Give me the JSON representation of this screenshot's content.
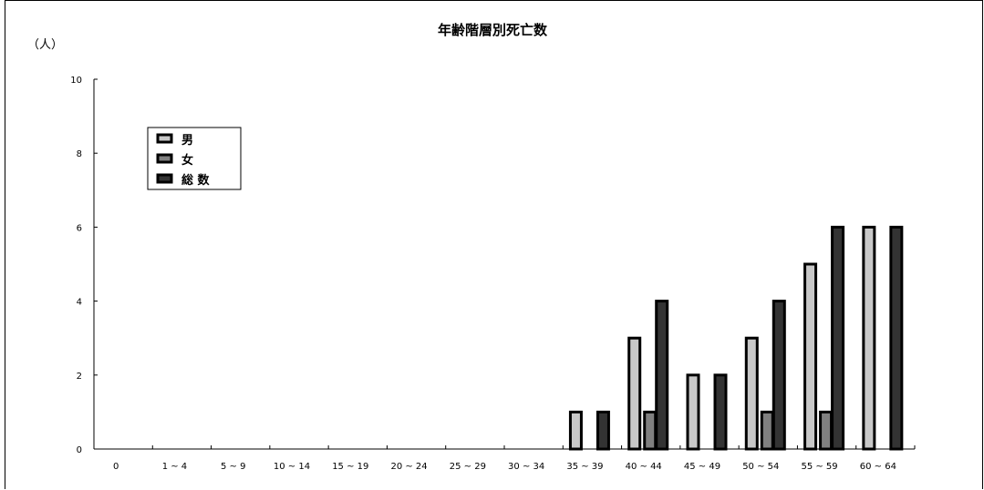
{
  "chart_data": {
    "type": "bar",
    "title": "年齢階層別死亡数",
    "ylabel": "（人）",
    "xlabel": "",
    "ylim": [
      0,
      10
    ],
    "yticks": [
      0,
      2,
      4,
      6,
      8,
      10
    ],
    "categories": [
      "0",
      "1 ~ 4",
      "5 ~ 9",
      "10 ~ 14",
      "15 ~ 19",
      "20 ~ 24",
      "25 ~ 29",
      "30 ~ 34",
      "35 ~ 39",
      "40 ~ 44",
      "45 ~ 49",
      "50 ~ 54",
      "55 ~ 59",
      "60 ~ 64"
    ],
    "series": [
      {
        "name": "男",
        "color": "#c8c8c8",
        "values": [
          0,
          0,
          0,
          0,
          0,
          0,
          0,
          0,
          1,
          3,
          2,
          3,
          5,
          6
        ]
      },
      {
        "name": "女",
        "color": "#808080",
        "values": [
          0,
          0,
          0,
          0,
          0,
          0,
          0,
          0,
          0,
          1,
          0,
          1,
          1,
          0
        ]
      },
      {
        "name": "総 数",
        "color": "#333333",
        "values": [
          0,
          0,
          0,
          0,
          0,
          0,
          0,
          0,
          1,
          4,
          2,
          4,
          6,
          6
        ]
      }
    ],
    "grid": false,
    "legend_position": "top-left"
  }
}
